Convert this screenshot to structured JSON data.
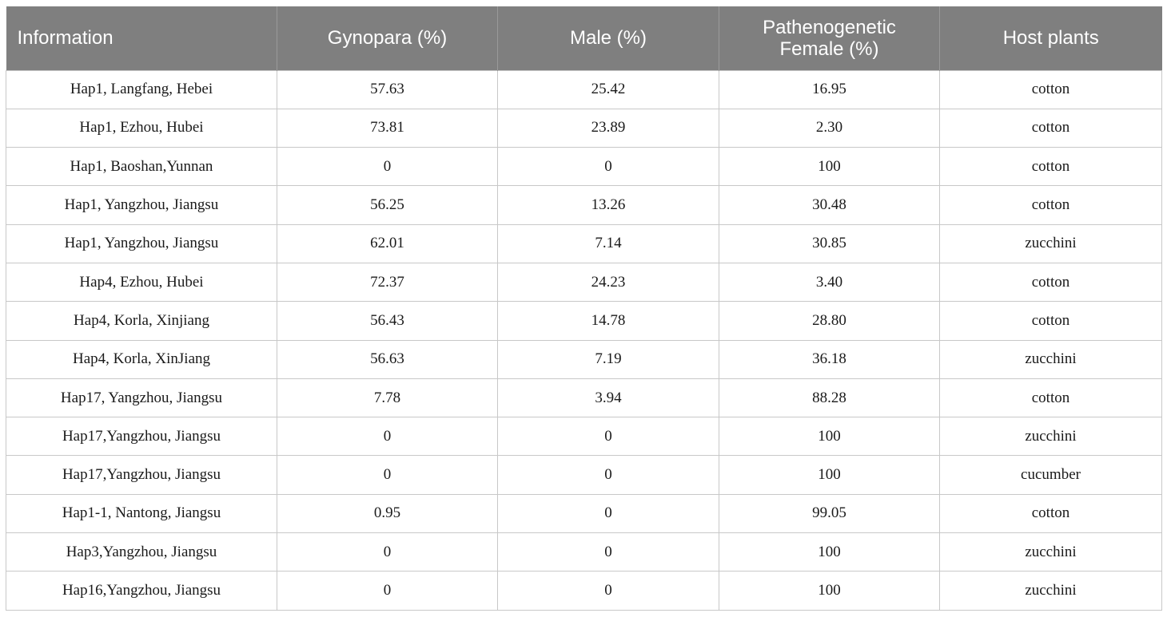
{
  "table": {
    "headers": {
      "information": "Information",
      "gynopara": "Gynopara (%)",
      "male": "Male (%)",
      "parthenogenetic_line1": "Pathenogenetic",
      "parthenogenetic_line2": "Female (%)",
      "host": "Host plants"
    },
    "rows": [
      [
        "Hap1, Langfang, Hebei",
        "57.63",
        "25.42",
        "16.95",
        "cotton"
      ],
      [
        "Hap1, Ezhou, Hubei",
        "73.81",
        "23.89",
        "2.30",
        "cotton"
      ],
      [
        "Hap1, Baoshan,Yunnan",
        "0",
        "0",
        "100",
        "cotton"
      ],
      [
        "Hap1, Yangzhou, Jiangsu",
        "56.25",
        "13.26",
        "30.48",
        "cotton"
      ],
      [
        "Hap1, Yangzhou, Jiangsu",
        "62.01",
        "7.14",
        "30.85",
        "zucchini"
      ],
      [
        "Hap4, Ezhou, Hubei",
        "72.37",
        "24.23",
        "3.40",
        "cotton"
      ],
      [
        "Hap4, Korla, Xinjiang",
        "56.43",
        "14.78",
        "28.80",
        "cotton"
      ],
      [
        "Hap4, Korla, XinJiang",
        "56.63",
        "7.19",
        "36.18",
        "zucchini"
      ],
      [
        "Hap17, Yangzhou, Jiangsu",
        "7.78",
        "3.94",
        "88.28",
        "cotton"
      ],
      [
        "Hap17,Yangzhou, Jiangsu",
        "0",
        "0",
        "100",
        "zucchini"
      ],
      [
        "Hap17,Yangzhou, Jiangsu",
        "0",
        "0",
        "100",
        "cucumber"
      ],
      [
        "Hap1-1, Nantong, Jiangsu",
        "0.95",
        "0",
        "99.05",
        "cotton"
      ],
      [
        "Hap3,Yangzhou, Jiangsu",
        "0",
        "0",
        "100",
        "zucchini"
      ],
      [
        "Hap16,Yangzhou, Jiangsu",
        "0",
        "0",
        "100",
        "zucchini"
      ]
    ]
  },
  "colors": {
    "header_bg": "#7f7f7f",
    "header_text": "#ffffff",
    "grid_line": "#c8c8c8"
  }
}
